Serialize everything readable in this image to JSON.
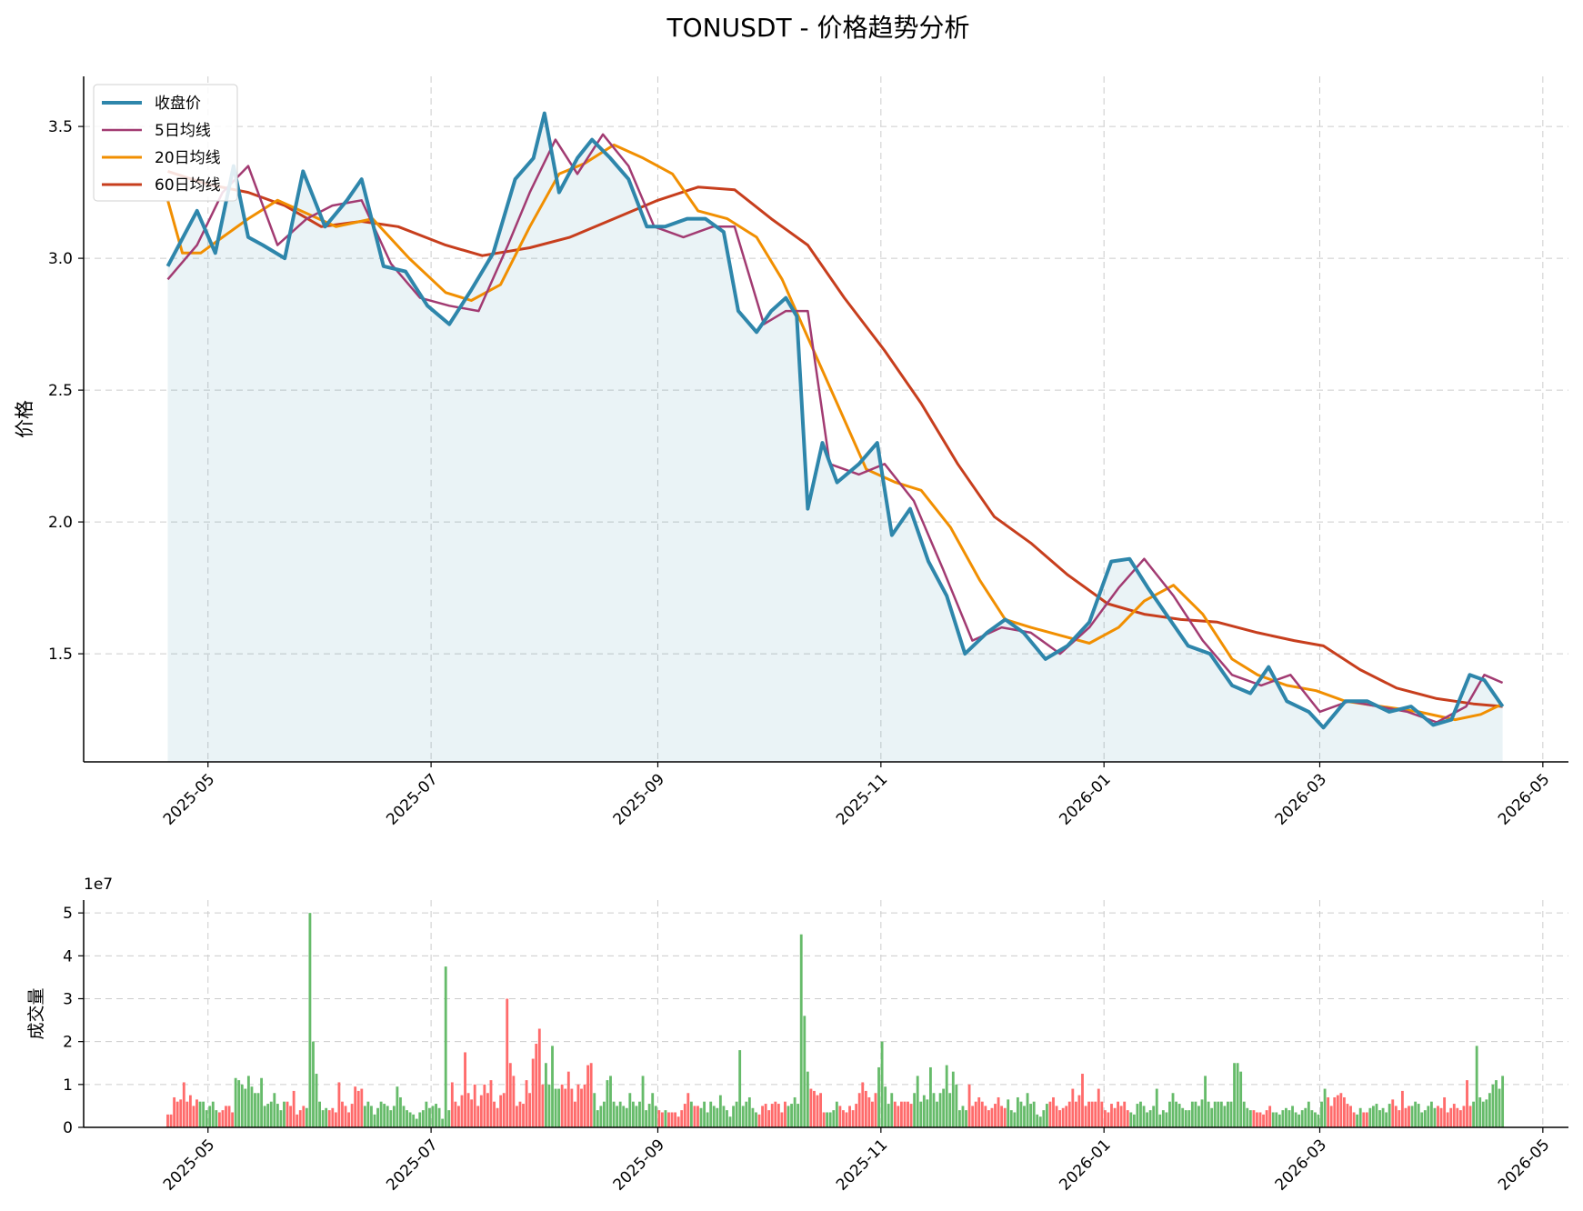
{
  "chart_data": [
    {
      "type": "line",
      "title": "TONUSDT - 价格趋势分析",
      "ylabel": "价格",
      "xlabel": "",
      "ylim": [
        1.09,
        3.69
      ],
      "xlim": [
        "2025-03-28",
        "2026-05-08"
      ],
      "yticks": [
        1.5,
        2.0,
        2.5,
        3.0,
        3.5
      ],
      "ytick_labels": [
        "1.5",
        "2.0",
        "2.5",
        "3.0",
        "3.5"
      ],
      "xticks": [
        "2025-05-01",
        "2025-07-01",
        "2025-09-01",
        "2025-11-01",
        "2026-01-01",
        "2026-03-01",
        "2026-05-01"
      ],
      "xtick_labels": [
        "2025-05",
        "2025-07",
        "2025-09",
        "2025-11",
        "2026-01",
        "2026-03",
        "2026-05"
      ],
      "grid": true,
      "legend": "upper-left",
      "area_fill_under": "收盘价",
      "series": [
        {
          "name": "收盘价",
          "color": "#2e86ab",
          "width": 4,
          "x": [
            "2025-04-20",
            "2025-04-28",
            "2025-05-03",
            "2025-05-08",
            "2025-05-12",
            "2025-05-16",
            "2025-05-22",
            "2025-05-27",
            "2025-06-02",
            "2025-06-08",
            "2025-06-12",
            "2025-06-18",
            "2025-06-24",
            "2025-06-30",
            "2025-07-06",
            "2025-07-12",
            "2025-07-18",
            "2025-07-24",
            "2025-07-29",
            "2025-08-01",
            "2025-08-05",
            "2025-08-10",
            "2025-08-14",
            "2025-08-19",
            "2025-08-24",
            "2025-08-29",
            "2025-09-03",
            "2025-09-09",
            "2025-09-14",
            "2025-09-19",
            "2025-09-23",
            "2025-09-28",
            "2025-10-02",
            "2025-10-06",
            "2025-10-09",
            "2025-10-12",
            "2025-10-16",
            "2025-10-20",
            "2025-10-26",
            "2025-10-31",
            "2025-11-04",
            "2025-11-09",
            "2025-11-14",
            "2025-11-19",
            "2025-11-24",
            "2025-11-30",
            "2025-12-05",
            "2025-12-10",
            "2025-12-16",
            "2025-12-22",
            "2025-12-28",
            "2026-01-03",
            "2026-01-08",
            "2026-01-13",
            "2026-01-18",
            "2026-01-24",
            "2026-01-30",
            "2026-02-05",
            "2026-02-10",
            "2026-02-15",
            "2026-02-20",
            "2026-02-26",
            "2026-03-02",
            "2026-03-08",
            "2026-03-14",
            "2026-03-20",
            "2026-03-26",
            "2026-04-01",
            "2026-04-06",
            "2026-04-11",
            "2026-04-15",
            "2026-04-20"
          ],
          "y": [
            2.97,
            3.18,
            3.02,
            3.35,
            3.08,
            3.05,
            3.0,
            3.33,
            3.12,
            3.22,
            3.3,
            2.97,
            2.95,
            2.82,
            2.75,
            2.88,
            3.02,
            3.3,
            3.38,
            3.55,
            3.25,
            3.38,
            3.45,
            3.38,
            3.3,
            3.12,
            3.12,
            3.15,
            3.15,
            3.1,
            2.8,
            2.72,
            2.8,
            2.85,
            2.78,
            2.05,
            2.3,
            2.15,
            2.22,
            2.3,
            1.95,
            2.05,
            1.85,
            1.72,
            1.5,
            1.58,
            1.63,
            1.58,
            1.48,
            1.53,
            1.62,
            1.85,
            1.86,
            1.75,
            1.65,
            1.53,
            1.5,
            1.38,
            1.35,
            1.45,
            1.32,
            1.28,
            1.22,
            1.32,
            1.32,
            1.28,
            1.3,
            1.23,
            1.25,
            1.42,
            1.4,
            1.3
          ]
        },
        {
          "name": "5日均线",
          "color": "#a23b72",
          "width": 2.5,
          "x": [
            "2025-04-20",
            "2025-04-28",
            "2025-05-05",
            "2025-05-12",
            "2025-05-20",
            "2025-05-28",
            "2025-06-04",
            "2025-06-12",
            "2025-06-20",
            "2025-06-28",
            "2025-07-06",
            "2025-07-14",
            "2025-07-22",
            "2025-07-28",
            "2025-08-04",
            "2025-08-10",
            "2025-08-17",
            "2025-08-24",
            "2025-08-31",
            "2025-09-08",
            "2025-09-16",
            "2025-09-22",
            "2025-09-30",
            "2025-10-06",
            "2025-10-12",
            "2025-10-18",
            "2025-10-26",
            "2025-11-02",
            "2025-11-10",
            "2025-11-18",
            "2025-11-26",
            "2025-12-04",
            "2025-12-12",
            "2025-12-20",
            "2025-12-28",
            "2026-01-05",
            "2026-01-12",
            "2026-01-20",
            "2026-01-28",
            "2026-02-05",
            "2026-02-13",
            "2026-02-21",
            "2026-03-01",
            "2026-03-09",
            "2026-03-17",
            "2026-03-25",
            "2026-04-02",
            "2026-04-10",
            "2026-04-15",
            "2026-04-20"
          ],
          "y": [
            2.92,
            3.05,
            3.25,
            3.35,
            3.05,
            3.15,
            3.2,
            3.22,
            2.98,
            2.85,
            2.82,
            2.8,
            3.05,
            3.25,
            3.45,
            3.32,
            3.47,
            3.35,
            3.12,
            3.08,
            3.12,
            3.12,
            2.75,
            2.8,
            2.8,
            2.22,
            2.18,
            2.22,
            2.08,
            1.82,
            1.55,
            1.6,
            1.58,
            1.5,
            1.6,
            1.75,
            1.86,
            1.72,
            1.55,
            1.42,
            1.38,
            1.42,
            1.28,
            1.32,
            1.3,
            1.28,
            1.24,
            1.3,
            1.42,
            1.39
          ]
        },
        {
          "name": "20日均线",
          "color": "#f18f01",
          "width": 3,
          "x": [
            "2025-04-20",
            "2025-04-24",
            "2025-04-29",
            "2025-05-05",
            "2025-05-12",
            "2025-05-20",
            "2025-05-28",
            "2025-06-05",
            "2025-06-15",
            "2025-06-25",
            "2025-07-05",
            "2025-07-12",
            "2025-07-20",
            "2025-07-28",
            "2025-08-05",
            "2025-08-12",
            "2025-08-20",
            "2025-08-28",
            "2025-09-05",
            "2025-09-12",
            "2025-09-20",
            "2025-09-28",
            "2025-10-05",
            "2025-10-12",
            "2025-10-20",
            "2025-10-28",
            "2025-11-05",
            "2025-11-12",
            "2025-11-20",
            "2025-11-28",
            "2025-12-05",
            "2025-12-12",
            "2025-12-20",
            "2025-12-28",
            "2026-01-05",
            "2026-01-12",
            "2026-01-20",
            "2026-01-28",
            "2026-02-05",
            "2026-02-12",
            "2026-02-20",
            "2026-02-28",
            "2026-03-08",
            "2026-03-18",
            "2026-03-28",
            "2026-04-07",
            "2026-04-14",
            "2026-04-20"
          ],
          "y": [
            3.22,
            3.02,
            3.02,
            3.08,
            3.15,
            3.22,
            3.17,
            3.12,
            3.15,
            3.0,
            2.87,
            2.84,
            2.9,
            3.12,
            3.32,
            3.36,
            3.43,
            3.38,
            3.32,
            3.18,
            3.15,
            3.08,
            2.92,
            2.7,
            2.45,
            2.2,
            2.15,
            2.12,
            1.98,
            1.78,
            1.63,
            1.6,
            1.57,
            1.54,
            1.6,
            1.7,
            1.76,
            1.65,
            1.48,
            1.42,
            1.38,
            1.36,
            1.32,
            1.3,
            1.28,
            1.25,
            1.27,
            1.31
          ]
        },
        {
          "name": "60日均线",
          "color": "#c73e1d",
          "width": 3,
          "x": [
            "2025-04-20",
            "2025-05-01",
            "2025-05-12",
            "2025-05-22",
            "2025-06-01",
            "2025-06-12",
            "2025-06-22",
            "2025-07-05",
            "2025-07-15",
            "2025-07-28",
            "2025-08-08",
            "2025-08-20",
            "2025-09-01",
            "2025-09-12",
            "2025-09-22",
            "2025-10-02",
            "2025-10-12",
            "2025-10-22",
            "2025-11-02",
            "2025-11-12",
            "2025-11-22",
            "2025-12-02",
            "2025-12-12",
            "2025-12-22",
            "2026-01-02",
            "2026-01-12",
            "2026-01-22",
            "2026-02-01",
            "2026-02-12",
            "2026-02-22",
            "2026-03-02",
            "2026-03-12",
            "2026-03-22",
            "2026-04-02",
            "2026-04-12",
            "2026-04-20"
          ],
          "y": [
            3.33,
            3.28,
            3.25,
            3.2,
            3.12,
            3.14,
            3.12,
            3.05,
            3.01,
            3.04,
            3.08,
            3.15,
            3.22,
            3.27,
            3.26,
            3.15,
            3.05,
            2.85,
            2.65,
            2.45,
            2.22,
            2.02,
            1.92,
            1.8,
            1.69,
            1.65,
            1.63,
            1.62,
            1.58,
            1.55,
            1.53,
            1.44,
            1.37,
            1.33,
            1.31,
            1.3
          ]
        }
      ]
    },
    {
      "type": "bar",
      "ylabel": "成交量",
      "xlabel": "",
      "offset_label": "1e7",
      "ylim": [
        0,
        5.3
      ],
      "unit_multiplier": 10000000,
      "yticks": [
        0,
        1,
        2,
        3,
        4,
        5
      ],
      "ytick_labels": [
        "0",
        "1",
        "2",
        "3",
        "4",
        "5"
      ],
      "xticks": [
        "2025-05-01",
        "2025-07-01",
        "2025-09-01",
        "2025-11-01",
        "2026-01-01",
        "2026-03-01",
        "2026-05-01"
      ],
      "xtick_labels": [
        "2025-05",
        "2025-07",
        "2025-09",
        "2025-11",
        "2026-01",
        "2026-03",
        "2026-05"
      ],
      "grid": true,
      "up_color": "#ff6b6b",
      "down_color": "#66bb6a",
      "start_date": "2025-04-20",
      "end_date": "2026-04-20",
      "values_1e7": [
        0.3,
        0.3,
        0.7,
        0.6,
        0.65,
        1.05,
        0.6,
        0.75,
        0.5,
        0.65,
        0.6,
        0.6,
        0.4,
        0.5,
        0.6,
        0.4,
        0.35,
        0.4,
        0.5,
        0.5,
        0.35,
        1.15,
        1.1,
        1.0,
        0.9,
        1.2,
        0.95,
        0.8,
        0.8,
        1.15,
        0.5,
        0.55,
        0.6,
        0.8,
        0.55,
        0.4,
        0.6,
        0.6,
        0.5,
        0.85,
        0.3,
        0.4,
        0.5,
        0.45,
        5.0,
        2.0,
        1.25,
        0.6,
        0.4,
        0.45,
        0.4,
        0.45,
        0.35,
        1.05,
        0.6,
        0.5,
        0.35,
        0.55,
        0.95,
        0.85,
        0.9,
        0.5,
        0.6,
        0.5,
        0.3,
        0.45,
        0.6,
        0.55,
        0.5,
        0.4,
        0.5,
        0.95,
        0.7,
        0.5,
        0.4,
        0.35,
        0.3,
        0.2,
        0.35,
        0.4,
        0.6,
        0.45,
        0.5,
        0.55,
        0.45,
        0.2,
        3.75,
        0.4,
        1.05,
        0.6,
        0.5,
        0.75,
        1.75,
        0.8,
        0.65,
        1.0,
        0.5,
        0.75,
        1.0,
        0.8,
        1.1,
        0.6,
        0.45,
        0.75,
        0.8,
        3.0,
        1.5,
        1.2,
        0.5,
        0.6,
        0.55,
        1.1,
        0.8,
        1.6,
        1.95,
        2.3,
        1.0,
        1.5,
        1.0,
        1.9,
        0.9,
        0.9,
        1.0,
        0.9,
        1.3,
        0.9,
        0.6,
        1.0,
        0.9,
        1.0,
        1.45,
        1.5,
        0.8,
        0.4,
        0.5,
        0.6,
        1.1,
        1.2,
        0.6,
        0.5,
        0.6,
        0.5,
        0.45,
        0.8,
        0.6,
        0.5,
        0.6,
        1.2,
        0.4,
        0.55,
        0.8,
        0.5,
        0.4,
        0.35,
        0.4,
        0.35,
        0.35,
        0.35,
        0.25,
        0.4,
        0.55,
        0.8,
        0.6,
        0.5,
        0.5,
        0.45,
        0.6,
        0.35,
        0.6,
        0.5,
        0.45,
        0.75,
        0.5,
        0.4,
        0.25,
        0.5,
        0.6,
        1.8,
        0.5,
        0.6,
        0.7,
        0.45,
        0.35,
        0.3,
        0.5,
        0.55,
        0.4,
        0.55,
        0.6,
        0.55,
        0.35,
        0.6,
        0.5,
        0.55,
        0.7,
        0.55,
        4.5,
        2.6,
        1.3,
        0.9,
        0.85,
        0.75,
        0.8,
        0.35,
        0.35,
        0.35,
        0.4,
        0.6,
        0.5,
        0.4,
        0.35,
        0.5,
        0.4,
        0.55,
        0.8,
        1.05,
        0.85,
        0.7,
        0.6,
        0.8,
        1.4,
        2.0,
        0.95,
        0.55,
        0.8,
        0.6,
        0.5,
        0.6,
        0.6,
        0.6,
        0.55,
        0.8,
        1.2,
        0.6,
        0.75,
        0.65,
        1.4,
        0.8,
        0.6,
        0.8,
        0.9,
        1.45,
        0.8,
        1.3,
        1.0,
        0.4,
        0.5,
        0.4,
        1.0,
        0.5,
        0.6,
        0.7,
        0.6,
        0.5,
        0.4,
        0.45,
        0.55,
        0.7,
        0.5,
        0.45,
        0.65,
        0.4,
        0.35,
        0.7,
        0.6,
        0.5,
        0.8,
        0.55,
        0.6,
        0.3,
        0.25,
        0.4,
        0.55,
        0.6,
        0.7,
        0.5,
        0.4,
        0.45,
        0.5,
        0.6,
        0.9,
        0.6,
        0.75,
        1.25,
        0.5,
        0.6,
        0.6,
        0.6,
        0.9,
        0.6,
        0.4,
        0.35,
        0.55,
        0.45,
        0.6,
        0.5,
        0.6,
        0.4,
        0.35,
        0.3,
        0.55,
        0.6,
        0.5,
        0.35,
        0.4,
        0.5,
        0.9,
        0.3,
        0.4,
        0.35,
        0.6,
        0.8,
        0.6,
        0.55,
        0.45,
        0.4,
        0.4,
        0.6,
        0.6,
        0.5,
        0.65,
        1.2,
        0.6,
        0.45,
        0.6,
        0.6,
        0.6,
        0.5,
        0.6,
        0.6,
        1.5,
        1.5,
        1.3,
        0.6,
        0.45,
        0.4,
        0.4,
        0.35,
        0.35,
        0.3,
        0.4,
        0.5,
        0.35,
        0.35,
        0.3,
        0.4,
        0.45,
        0.4,
        0.5,
        0.35,
        0.3,
        0.4,
        0.45,
        0.6,
        0.4,
        0.35,
        0.3,
        0.6,
        0.9,
        0.7,
        0.5,
        0.7,
        0.75,
        0.8,
        0.7,
        0.55,
        0.5,
        0.35,
        0.3,
        0.45,
        0.35,
        0.35,
        0.45,
        0.5,
        0.55,
        0.4,
        0.45,
        0.35,
        0.55,
        0.65,
        0.5,
        0.4,
        0.85,
        0.45,
        0.5,
        0.5,
        0.6,
        0.55,
        0.35,
        0.4,
        0.5,
        0.6,
        0.45,
        0.5,
        0.45,
        0.7,
        0.35,
        0.45,
        0.55,
        0.45,
        0.4,
        0.5,
        1.1,
        0.5,
        0.6,
        1.9,
        0.7,
        0.6,
        0.65,
        0.8,
        1.0,
        1.1,
        0.9,
        1.2
      ],
      "colors_up": "r"
    }
  ]
}
